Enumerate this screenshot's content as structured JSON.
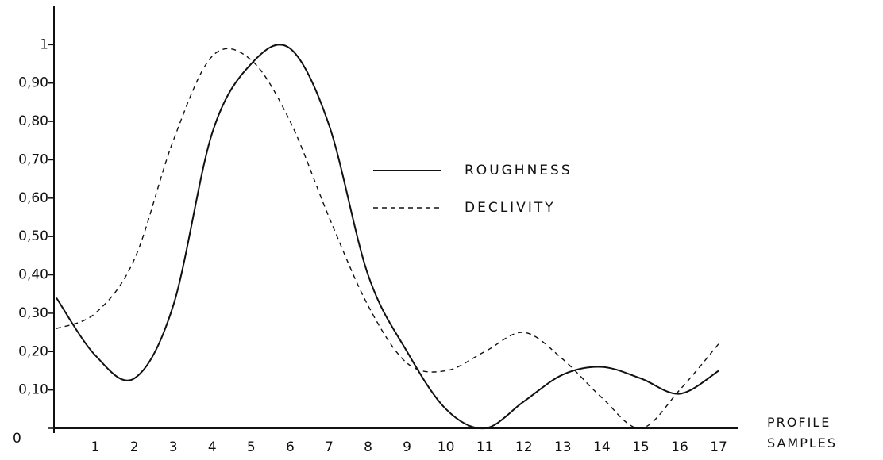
{
  "chart_data": {
    "type": "line",
    "x_label": "PROFILE SAMPLES",
    "x": [
      0,
      1,
      2,
      3,
      4,
      5,
      6,
      7,
      8,
      9,
      10,
      11,
      12,
      13,
      14,
      15,
      16,
      17
    ],
    "series": [
      {
        "name": "ROUGHNESS",
        "color": "#111111",
        "style": "solid",
        "values": [
          0.34,
          0.19,
          0.13,
          0.32,
          0.77,
          0.95,
          0.99,
          0.79,
          0.4,
          0.2,
          0.05,
          0.0,
          0.07,
          0.14,
          0.16,
          0.13,
          0.09,
          0.15
        ]
      },
      {
        "name": "DECLIVITY",
        "color": "#111111",
        "style": "dashed",
        "values": [
          0.26,
          0.3,
          0.44,
          0.75,
          0.97,
          0.96,
          0.8,
          0.55,
          0.32,
          0.17,
          0.15,
          0.2,
          0.25,
          0.18,
          0.08,
          0.0,
          0.1,
          0.22
        ]
      }
    ],
    "xlim": [
      0,
      17.5
    ],
    "xticks": [
      1,
      2,
      3,
      4,
      5,
      6,
      7,
      8,
      9,
      10,
      11,
      12,
      13,
      14,
      15,
      16,
      17
    ],
    "ylim": [
      0,
      1.1
    ],
    "yticks": [
      0,
      {
        "value": 0.1,
        "label": "0,10"
      },
      {
        "value": 0.2,
        "label": "0,20"
      },
      {
        "value": 0.3,
        "label": "0,30"
      },
      {
        "value": 0.4,
        "label": "0,40"
      },
      {
        "value": 0.5,
        "label": "0,50"
      },
      {
        "value": 0.6,
        "label": "0,60"
      },
      {
        "value": 0.7,
        "label": "0,70"
      },
      {
        "value": 0.8,
        "label": "0,80"
      },
      {
        "value": 0.9,
        "label": "0,90"
      },
      1
    ]
  }
}
